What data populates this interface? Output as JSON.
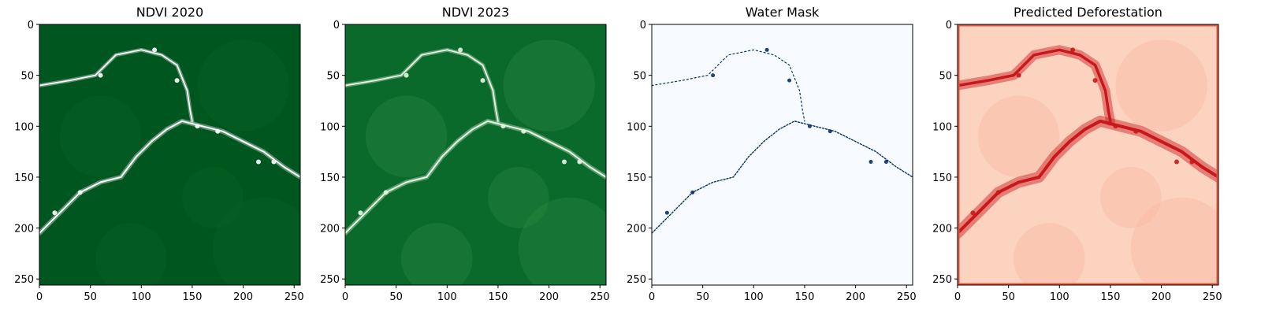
{
  "figure": {
    "panel_titles": [
      "NDVI 2020",
      "NDVI 2023",
      "Water Mask",
      "Predicted Deforestation"
    ]
  },
  "chart_data": [
    {
      "type": "heatmap",
      "title": "NDVI 2020",
      "colormap": "Greens",
      "xlim": [
        0,
        256
      ],
      "ylim": [
        256,
        0
      ],
      "x_ticks": [
        0,
        50,
        100,
        150,
        200,
        250
      ],
      "y_ticks": [
        0,
        50,
        100,
        150,
        200,
        250
      ],
      "background_color": "#00561f",
      "feature_color": "#ffffff",
      "river_path": [
        [
          0,
          205
        ],
        [
          20,
          185
        ],
        [
          40,
          165
        ],
        [
          60,
          155
        ],
        [
          80,
          150
        ],
        [
          95,
          130
        ],
        [
          110,
          115
        ],
        [
          125,
          103
        ],
        [
          140,
          95
        ],
        [
          160,
          100
        ],
        [
          180,
          105
        ],
        [
          200,
          115
        ],
        [
          220,
          125
        ],
        [
          240,
          140
        ],
        [
          256,
          150
        ]
      ],
      "tributary_path": [
        [
          0,
          60
        ],
        [
          30,
          55
        ],
        [
          55,
          50
        ],
        [
          75,
          30
        ],
        [
          100,
          25
        ],
        [
          120,
          30
        ],
        [
          135,
          40
        ],
        [
          145,
          65
        ],
        [
          148,
          85
        ],
        [
          150,
          95
        ]
      ]
    },
    {
      "type": "heatmap",
      "title": "NDVI 2023",
      "colormap": "Greens",
      "xlim": [
        0,
        256
      ],
      "ylim": [
        256,
        0
      ],
      "x_ticks": [
        0,
        50,
        100,
        150,
        200,
        250
      ],
      "y_ticks": [
        0,
        50,
        100,
        150,
        200,
        250
      ],
      "background_color": "#0a6a2c",
      "feature_color": "#e9f6e3",
      "river_path": [
        [
          0,
          205
        ],
        [
          20,
          185
        ],
        [
          40,
          165
        ],
        [
          60,
          155
        ],
        [
          80,
          150
        ],
        [
          95,
          130
        ],
        [
          110,
          115
        ],
        [
          125,
          103
        ],
        [
          140,
          95
        ],
        [
          160,
          100
        ],
        [
          180,
          105
        ],
        [
          200,
          115
        ],
        [
          220,
          125
        ],
        [
          240,
          140
        ],
        [
          256,
          150
        ]
      ],
      "tributary_path": [
        [
          0,
          60
        ],
        [
          30,
          55
        ],
        [
          55,
          50
        ],
        [
          75,
          30
        ],
        [
          100,
          25
        ],
        [
          120,
          30
        ],
        [
          135,
          40
        ],
        [
          145,
          65
        ],
        [
          148,
          85
        ],
        [
          150,
          95
        ]
      ]
    },
    {
      "type": "heatmap",
      "title": "Water Mask",
      "colormap": "Blues",
      "xlim": [
        0,
        256
      ],
      "ylim": [
        256,
        0
      ],
      "x_ticks": [
        0,
        50,
        100,
        150,
        200,
        250
      ],
      "y_ticks": [
        0,
        50,
        100,
        150,
        200,
        250
      ],
      "background_color": "#f7fbff",
      "feature_color": "#08306b",
      "river_path": [
        [
          0,
          205
        ],
        [
          20,
          185
        ],
        [
          40,
          165
        ],
        [
          60,
          155
        ],
        [
          80,
          150
        ],
        [
          95,
          130
        ],
        [
          110,
          115
        ],
        [
          125,
          103
        ],
        [
          140,
          95
        ],
        [
          160,
          100
        ],
        [
          180,
          105
        ],
        [
          200,
          115
        ],
        [
          220,
          125
        ],
        [
          240,
          140
        ],
        [
          256,
          150
        ]
      ],
      "tributary_path": [
        [
          0,
          60
        ],
        [
          30,
          55
        ],
        [
          55,
          50
        ],
        [
          75,
          30
        ],
        [
          100,
          25
        ],
        [
          120,
          30
        ],
        [
          135,
          40
        ],
        [
          145,
          65
        ],
        [
          148,
          85
        ],
        [
          150,
          95
        ]
      ]
    },
    {
      "type": "heatmap",
      "title": "Predicted Deforestation",
      "colormap": "Reds",
      "xlim": [
        0,
        256
      ],
      "ylim": [
        256,
        0
      ],
      "x_ticks": [
        0,
        50,
        100,
        150,
        200,
        250
      ],
      "y_ticks": [
        0,
        50,
        100,
        150,
        200,
        250
      ],
      "background_color": "#fcd3bf",
      "feature_color": "#c9181d",
      "river_path": [
        [
          0,
          205
        ],
        [
          20,
          185
        ],
        [
          40,
          165
        ],
        [
          60,
          155
        ],
        [
          80,
          150
        ],
        [
          95,
          130
        ],
        [
          110,
          115
        ],
        [
          125,
          103
        ],
        [
          140,
          95
        ],
        [
          160,
          100
        ],
        [
          180,
          105
        ],
        [
          200,
          115
        ],
        [
          220,
          125
        ],
        [
          240,
          140
        ],
        [
          256,
          150
        ]
      ],
      "tributary_path": [
        [
          0,
          60
        ],
        [
          30,
          55
        ],
        [
          55,
          50
        ],
        [
          75,
          30
        ],
        [
          100,
          25
        ],
        [
          120,
          30
        ],
        [
          135,
          40
        ],
        [
          145,
          65
        ],
        [
          148,
          85
        ],
        [
          150,
          95
        ]
      ]
    }
  ]
}
